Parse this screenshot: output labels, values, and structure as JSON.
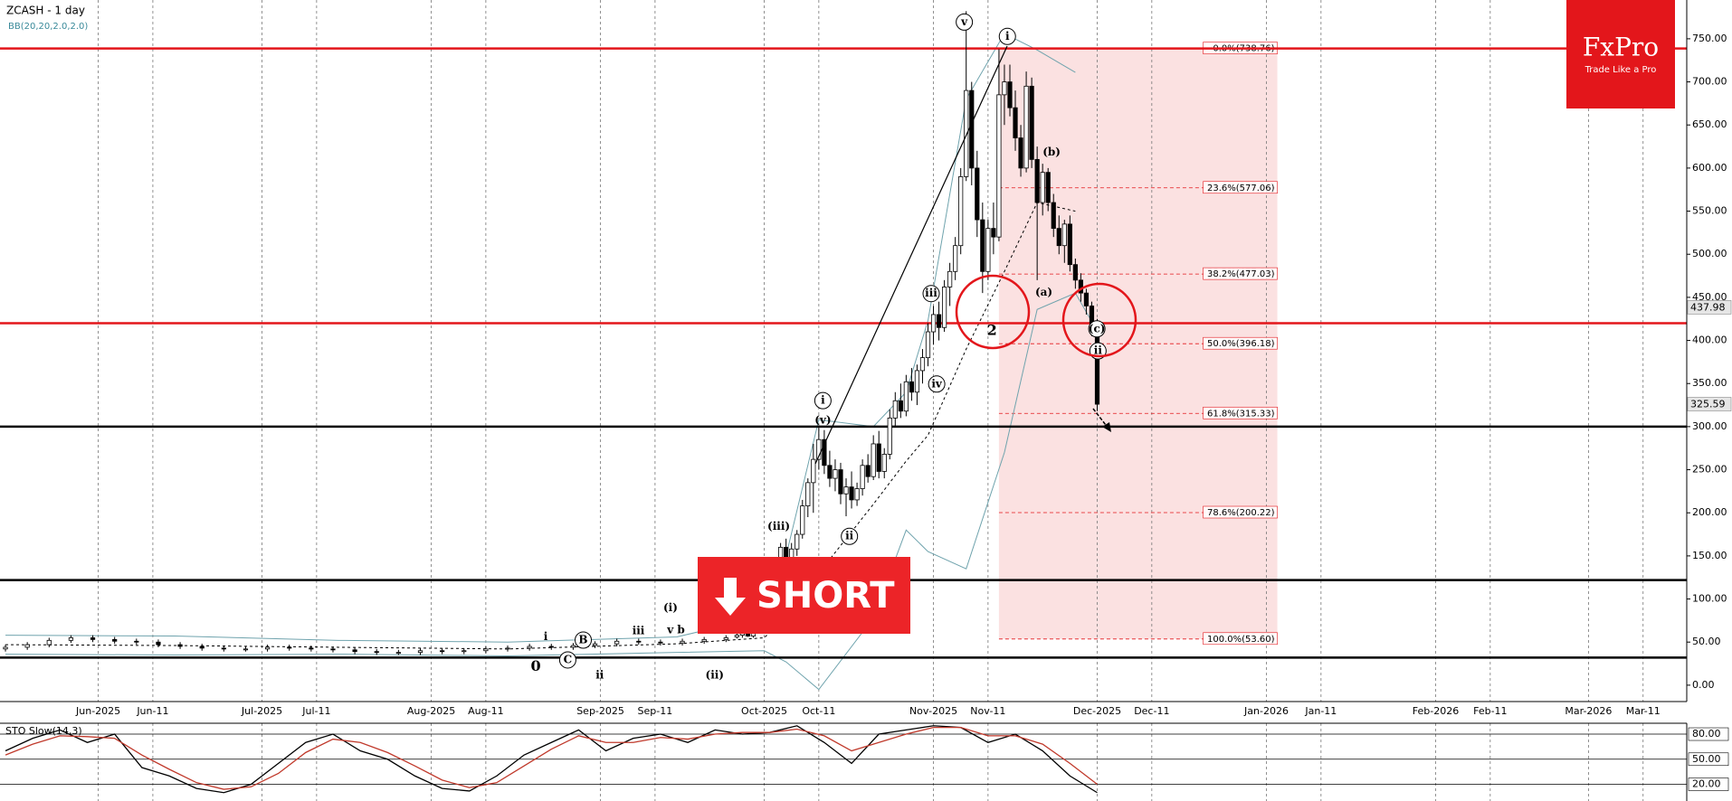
{
  "chart_data": [
    {
      "type": "candlestick",
      "title": "ZCASH - 1 day",
      "x": [
        "2025-05-15",
        "2025-05-19",
        "2025-05-23",
        "2025-05-27",
        "2025-05-31",
        "2025-06-04",
        "2025-06-08",
        "2025-06-12",
        "2025-06-16",
        "2025-06-20",
        "2025-06-24",
        "2025-06-28",
        "2025-07-02",
        "2025-07-06",
        "2025-07-10",
        "2025-07-14",
        "2025-07-18",
        "2025-07-22",
        "2025-07-26",
        "2025-07-30",
        "2025-08-03",
        "2025-08-07",
        "2025-08-11",
        "2025-08-15",
        "2025-08-19",
        "2025-08-23",
        "2025-08-27",
        "2025-08-31",
        "2025-09-04",
        "2025-09-08",
        "2025-09-12",
        "2025-09-16",
        "2025-09-20",
        "2025-09-24",
        "2025-09-26",
        "2025-09-27",
        "2025-09-28",
        "2025-09-29",
        "2025-09-30",
        "2025-10-01",
        "2025-10-02",
        "2025-10-03",
        "2025-10-04",
        "2025-10-05",
        "2025-10-06",
        "2025-10-07",
        "2025-10-08",
        "2025-10-09",
        "2025-10-10",
        "2025-10-11",
        "2025-10-12",
        "2025-10-13",
        "2025-10-14",
        "2025-10-15",
        "2025-10-16",
        "2025-10-17",
        "2025-10-18",
        "2025-10-19",
        "2025-10-20",
        "2025-10-21",
        "2025-10-22",
        "2025-10-23",
        "2025-10-24",
        "2025-10-25",
        "2025-10-26",
        "2025-10-27",
        "2025-10-28",
        "2025-10-29",
        "2025-10-30",
        "2025-10-31",
        "2025-11-01",
        "2025-11-02",
        "2025-11-03",
        "2025-11-04",
        "2025-11-05",
        "2025-11-06",
        "2025-11-07",
        "2025-11-08",
        "2025-11-09",
        "2025-11-10",
        "2025-11-11",
        "2025-11-12",
        "2025-11-13",
        "2025-11-14",
        "2025-11-15",
        "2025-11-16",
        "2025-11-17",
        "2025-11-18",
        "2025-11-19",
        "2025-11-20",
        "2025-11-21",
        "2025-11-22",
        "2025-11-23",
        "2025-11-24",
        "2025-11-25",
        "2025-11-26",
        "2025-11-27",
        "2025-11-28",
        "2025-11-29",
        "2025-11-30",
        "2025-12-01"
      ],
      "open": [
        42,
        44,
        47,
        52,
        55,
        53,
        51,
        50,
        47,
        45,
        43,
        42,
        42,
        44,
        43,
        42,
        41,
        39,
        38,
        38,
        40,
        39,
        40,
        42,
        43,
        45,
        44,
        46,
        48,
        51,
        50,
        49,
        51,
        53,
        56,
        58,
        60,
        57,
        63,
        70,
        82,
        115,
        130,
        160,
        148,
        158,
        175,
        208,
        235,
        262,
        285,
        255,
        240,
        250,
        222,
        230,
        215,
        228,
        255,
        242,
        280,
        248,
        268,
        310,
        330,
        318,
        352,
        340,
        365,
        380,
        410,
        430,
        415,
        462,
        480,
        510,
        590,
        690,
        600,
        540,
        480,
        530,
        520,
        685,
        700,
        670,
        635,
        600,
        695,
        610,
        560,
        595,
        560,
        530,
        510,
        535,
        488,
        470,
        455,
        440,
        420
      ],
      "high": [
        47,
        50,
        55,
        58,
        58,
        56,
        54,
        53,
        50,
        48,
        46,
        45,
        47,
        47,
        46,
        45,
        44,
        42,
        41,
        43,
        43,
        43,
        45,
        46,
        48,
        48,
        49,
        51,
        54,
        54,
        53,
        54,
        56,
        58,
        60,
        62,
        63,
        65,
        72,
        85,
        120,
        140,
        165,
        170,
        165,
        180,
        215,
        240,
        280,
        300,
        296,
        272,
        262,
        258,
        240,
        248,
        235,
        262,
        268,
        290,
        295,
        275,
        320,
        340,
        350,
        360,
        368,
        372,
        390,
        420,
        440,
        445,
        470,
        490,
        520,
        600,
        782,
        700,
        620,
        560,
        540,
        560,
        738,
        720,
        720,
        690,
        650,
        712,
        705,
        625,
        605,
        600,
        570,
        545,
        540,
        545,
        495,
        478,
        460,
        445,
        425
      ],
      "low": [
        39,
        41,
        44,
        49,
        50,
        48,
        47,
        44,
        42,
        40,
        39,
        39,
        39,
        40,
        39,
        38,
        36,
        35,
        35,
        35,
        36,
        36,
        37,
        39,
        40,
        41,
        41,
        43,
        45,
        47,
        46,
        46,
        48,
        50,
        54,
        55,
        56,
        55,
        60,
        66,
        80,
        105,
        120,
        140,
        135,
        150,
        170,
        195,
        200,
        250,
        245,
        230,
        225,
        210,
        196,
        205,
        208,
        220,
        235,
        238,
        240,
        240,
        262,
        300,
        310,
        312,
        330,
        325,
        350,
        370,
        395,
        400,
        410,
        440,
        470,
        500,
        585,
        580,
        520,
        455,
        470,
        500,
        515,
        650,
        660,
        620,
        590,
        595,
        600,
        470,
        545,
        550,
        520,
        500,
        490,
        480,
        460,
        445,
        430,
        405,
        318
      ],
      "close": [
        44,
        47,
        52,
        55,
        53,
        51,
        50,
        47,
        45,
        43,
        42,
        42,
        44,
        43,
        42,
        41,
        39,
        38,
        38,
        40,
        39,
        40,
        42,
        43,
        45,
        44,
        46,
        48,
        51,
        50,
        49,
        51,
        53,
        55,
        58,
        60,
        57,
        63,
        70,
        82,
        115,
        130,
        160,
        148,
        158,
        175,
        208,
        235,
        262,
        285,
        255,
        240,
        250,
        222,
        230,
        215,
        228,
        255,
        242,
        280,
        248,
        268,
        310,
        330,
        318,
        352,
        340,
        365,
        380,
        410,
        430,
        415,
        462,
        480,
        510,
        590,
        690,
        600,
        540,
        480,
        530,
        520,
        685,
        700,
        670,
        635,
        600,
        695,
        610,
        560,
        595,
        560,
        530,
        510,
        535,
        488,
        470,
        455,
        440,
        420,
        326
      ],
      "up_color": "#ffffff",
      "down_color": "#000000",
      "xlim": [
        "2025-05-14",
        "2026-03-19"
      ],
      "xticks": [
        {
          "value": "2025-06-01",
          "label": "Jun-2025"
        },
        {
          "value": "2025-06-11",
          "label": "Jun-11"
        },
        {
          "value": "2025-07-01",
          "label": "Jul-2025"
        },
        {
          "value": "2025-07-11",
          "label": "Jul-11"
        },
        {
          "value": "2025-08-01",
          "label": "Aug-2025"
        },
        {
          "value": "2025-08-11",
          "label": "Aug-11"
        },
        {
          "value": "2025-09-01",
          "label": "Sep-2025"
        },
        {
          "value": "2025-09-11",
          "label": "Sep-11"
        },
        {
          "value": "2025-10-01",
          "label": "Oct-2025"
        },
        {
          "value": "2025-10-11",
          "label": "Oct-11"
        },
        {
          "value": "2025-11-01",
          "label": "Nov-2025"
        },
        {
          "value": "2025-11-11",
          "label": "Nov-11"
        },
        {
          "value": "2025-12-01",
          "label": "Dec-2025"
        },
        {
          "value": "2025-12-11",
          "label": "Dec-11"
        },
        {
          "value": "2026-01-01",
          "label": "Jan-2026"
        },
        {
          "value": "2026-01-11",
          "label": "Jan-11"
        },
        {
          "value": "2026-02-01",
          "label": "Feb-2026"
        },
        {
          "value": "2026-02-11",
          "label": "Feb-11"
        },
        {
          "value": "2026-03-01",
          "label": "Mar-2026"
        },
        {
          "value": "2026-03-11",
          "label": "Mar-11"
        }
      ],
      "ylim": [
        -19,
        795
      ],
      "yticks": [
        {
          "value": 0,
          "label": "0.00"
        },
        {
          "value": 50,
          "label": "50.00"
        },
        {
          "value": 100,
          "label": "100.00"
        },
        {
          "value": 150,
          "label": "150.00"
        },
        {
          "value": 200,
          "label": "200.00"
        },
        {
          "value": 250,
          "label": "250.00"
        },
        {
          "value": 300,
          "label": "300.00"
        },
        {
          "value": 350,
          "label": "350.00"
        },
        {
          "value": 400,
          "label": "400.00"
        },
        {
          "value": 450,
          "label": "450.00"
        },
        {
          "value": 500,
          "label": "500.00"
        },
        {
          "value": 550,
          "label": "550.00"
        },
        {
          "value": 600,
          "label": "600.00"
        },
        {
          "value": 650,
          "label": "650.00"
        },
        {
          "value": 700,
          "label": "700.00"
        },
        {
          "value": 750,
          "label": "750.00"
        }
      ],
      "bands": {
        "name": "BB(20,20,2.0,2.0)",
        "color": "#6fa3ad",
        "x": [
          "2025-05-15",
          "2025-06-15",
          "2025-07-15",
          "2025-08-15",
          "2025-09-15",
          "2025-10-01",
          "2025-10-05",
          "2025-10-11",
          "2025-10-21",
          "2025-10-27",
          "2025-10-31",
          "2025-11-07",
          "2025-11-14",
          "2025-11-20",
          "2025-11-27",
          "2025-12-01"
        ],
        "upper": [
          58,
          57,
          52,
          50,
          56,
          80,
          150,
          308,
          300,
          340,
          423,
          680,
          756,
          737,
          711,
          null
        ],
        "middle": [
          47,
          46,
          44,
          42,
          48,
          55,
          80,
          130,
          210,
          260,
          290,
          390,
          480,
          560,
          550,
          null
        ],
        "lower": [
          36,
          35,
          36,
          34,
          38,
          40,
          27,
          -5,
          78,
          180,
          155,
          135,
          270,
          436,
          455,
          411
        ]
      },
      "horizontal_lines": [
        {
          "value": 738.76,
          "color": "#e3161b"
        },
        {
          "value": 420,
          "color": "#e3161b"
        },
        {
          "value": 300,
          "color": "#000000"
        },
        {
          "value": 122,
          "color": "#000000"
        },
        {
          "value": 32,
          "color": "#000000"
        }
      ],
      "fib": {
        "x": [
          "2025-11-13",
          "2026-01-03"
        ],
        "color": "#e3161b",
        "levels": [
          {
            "value": 738.76,
            "label": "0.0%(738.76)"
          },
          {
            "value": 577.06,
            "label": "23.6%(577.06)"
          },
          {
            "value": 477.03,
            "label": "38.2%(477.03)"
          },
          {
            "value": 396.18,
            "label": "50.0%(396.18)"
          },
          {
            "value": 315.33,
            "label": "61.8%(315.33)"
          },
          {
            "value": 200.22,
            "label": "78.6%(200.22)"
          },
          {
            "value": 53.6,
            "label": "100.0%(53.60)"
          }
        ]
      },
      "price_labels": [
        437.98,
        325.59
      ],
      "annotations": [
        "v",
        "i",
        "(b)",
        "(a)",
        "(c)",
        "ii",
        "2",
        "iii",
        "iv",
        "i",
        "(v)",
        "(iii)",
        "ii",
        "(i)",
        "v b",
        "iii",
        "i",
        "0",
        "ii",
        "(ii)",
        "B",
        "C"
      ]
    },
    {
      "type": "line",
      "title": "STO Slow(14,3)",
      "x": [
        "2025-05-15",
        "2025-05-20",
        "2025-05-25",
        "2025-05-30",
        "2025-06-04",
        "2025-06-09",
        "2025-06-14",
        "2025-06-19",
        "2025-06-24",
        "2025-06-29",
        "2025-07-04",
        "2025-07-09",
        "2025-07-14",
        "2025-07-19",
        "2025-07-24",
        "2025-07-29",
        "2025-08-03",
        "2025-08-08",
        "2025-08-13",
        "2025-08-18",
        "2025-08-23",
        "2025-08-28",
        "2025-09-02",
        "2025-09-07",
        "2025-09-12",
        "2025-09-17",
        "2025-09-22",
        "2025-09-27",
        "2025-10-02",
        "2025-10-07",
        "2025-10-12",
        "2025-10-17",
        "2025-10-22",
        "2025-10-27",
        "2025-11-01",
        "2025-11-06",
        "2025-11-11",
        "2025-11-16",
        "2025-11-21",
        "2025-11-26",
        "2025-12-01"
      ],
      "series": [
        {
          "color": "#000000",
          "values": [
            60,
            75,
            85,
            70,
            80,
            40,
            30,
            15,
            10,
            20,
            45,
            70,
            80,
            60,
            50,
            30,
            15,
            12,
            30,
            55,
            70,
            85,
            60,
            75,
            80,
            70,
            85,
            80,
            82,
            90,
            70,
            45,
            80,
            85,
            90,
            88,
            70,
            80,
            60,
            30,
            10
          ]
        },
        {
          "color": "#c0392b",
          "values": [
            55,
            68,
            78,
            77,
            75,
            55,
            38,
            22,
            14,
            17,
            33,
            58,
            74,
            70,
            58,
            42,
            25,
            16,
            22,
            42,
            62,
            78,
            70,
            70,
            76,
            74,
            80,
            82,
            82,
            86,
            78,
            60,
            70,
            80,
            88,
            88,
            78,
            78,
            68,
            45,
            20
          ]
        }
      ],
      "ylim": [
        0,
        93
      ],
      "yticks": [
        {
          "value": 20,
          "label": "20.00"
        },
        {
          "value": 50,
          "label": "50.00"
        },
        {
          "value": 80,
          "label": "80.00"
        }
      ]
    }
  ],
  "banner": {
    "text": "SHORT"
  },
  "logo": {
    "title": "FxPro",
    "tagline": "Trade Like a Pro"
  }
}
